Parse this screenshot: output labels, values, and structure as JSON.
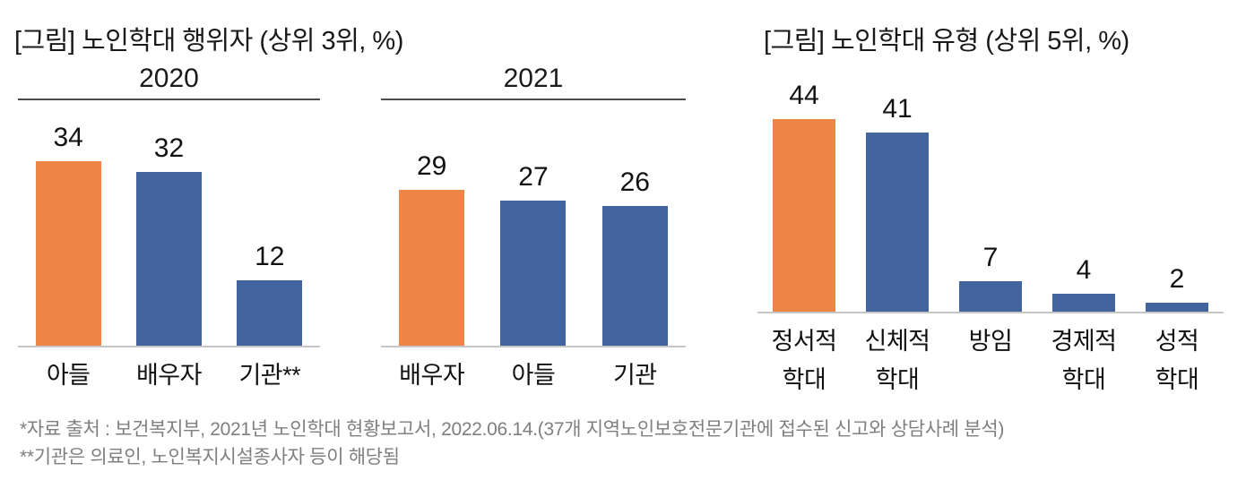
{
  "figures": {
    "left_title": "[그림] 노인학대 행위자 (상위 3위, %)",
    "right_title": "[그림] 노인학대 유형 (상위 5위, %)"
  },
  "colors": {
    "accent_orange": "#ED8546",
    "bar_blue": "#4464A0",
    "baseline_gray": "#C6C6C6",
    "year_line_gray": "#4D4D4D",
    "footnote_gray": "#7F7F7F"
  },
  "chart_data": [
    {
      "type": "bar",
      "title": "2020",
      "group": "노인학대 행위자 (상위 3위, %)",
      "categories": [
        "아들",
        "배우자",
        "기관**"
      ],
      "values": [
        34,
        32,
        12
      ],
      "bar_colors": [
        "#ED8546",
        "#4464A0",
        "#4464A0"
      ],
      "unit": "%",
      "ylim": [
        0,
        46
      ],
      "grid": false,
      "legend": false
    },
    {
      "type": "bar",
      "title": "2021",
      "group": "노인학대 행위자 (상위 3위, %)",
      "categories": [
        "배우자",
        "아들",
        "기관"
      ],
      "values": [
        29,
        27,
        26
      ],
      "bar_colors": [
        "#ED8546",
        "#4464A0",
        "#4464A0"
      ],
      "unit": "%",
      "ylim": [
        0,
        46
      ],
      "grid": false,
      "legend": false
    },
    {
      "type": "bar",
      "title": "",
      "group": "노인학대 유형 (상위 5위, %)",
      "categories": [
        "정서적\n학대",
        "신체적\n학대",
        "방임",
        "경제적\n학대",
        "성적\n학대"
      ],
      "values": [
        44,
        41,
        7,
        4,
        2
      ],
      "bar_colors": [
        "#ED8546",
        "#4464A0",
        "#4464A0",
        "#4464A0",
        "#4464A0"
      ],
      "unit": "%",
      "ylim": [
        0,
        53
      ],
      "grid": false,
      "legend": false
    }
  ],
  "footnotes": [
    "*자료 출처 : 보건복지부, 2021년 노인학대 현황보고서, 2022.06.14.(37개 지역노인보호전문기관에 접수된 신고와 상담사례 분석)",
    "**기관은 의료인, 노인복지시설종사자 등이 해당됨"
  ]
}
